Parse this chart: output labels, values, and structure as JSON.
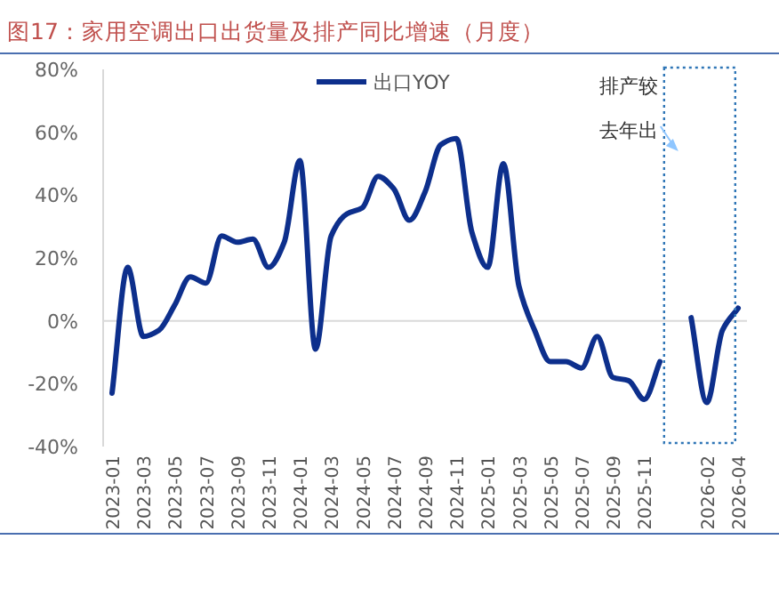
{
  "chart_data": {
    "type": "line",
    "title": "图17：家用空调出口出货量及排产同比增速（月度）",
    "categories": [
      "2023-01",
      null,
      "2023-03",
      null,
      "2023-05",
      null,
      "2023-07",
      null,
      "2023-09",
      null,
      "2023-11",
      null,
      "2024-01",
      null,
      "2024-03",
      null,
      "2024-05",
      null,
      "2024-07",
      null,
      "2024-09",
      null,
      "2024-11",
      null,
      "2025-01",
      null,
      "2025-03",
      null,
      "2025-05",
      null,
      "2025-07",
      null,
      "2025-09",
      null,
      "2025-11",
      null,
      null,
      null,
      "2026-02",
      null,
      "2026-04"
    ],
    "series": [
      {
        "name": "出口YOY",
        "color": "#0d2f8c",
        "values": [
          -23,
          17,
          -5,
          -3,
          5,
          14,
          12,
          27,
          25,
          26,
          17,
          25,
          51,
          -9,
          27,
          34,
          36,
          46,
          42,
          32,
          41,
          56,
          58,
          28,
          17,
          50,
          11,
          -3,
          -13,
          -13,
          -15,
          -5,
          -18,
          -19,
          -25,
          -13,
          null,
          1,
          -26,
          -3,
          4
        ]
      }
    ],
    "ylim": [
      -40,
      80
    ],
    "yticks": [
      {
        "value": -40,
        "label": "-40%"
      },
      {
        "value": -20,
        "label": "-20%"
      },
      {
        "value": 0,
        "label": "0%"
      },
      {
        "value": 20,
        "label": "20%"
      },
      {
        "value": 40,
        "label": "40%"
      },
      {
        "value": 60,
        "label": "60%"
      },
      {
        "value": 80,
        "label": "80%"
      }
    ],
    "grid": false,
    "legend": "top",
    "line_style": "solid",
    "marker": "none",
    "ref_lines": [
      {
        "axis": "y",
        "value": 0,
        "color": "#d9d9d9"
      }
    ],
    "annotations": [
      "排产较去年出"
    ]
  }
}
